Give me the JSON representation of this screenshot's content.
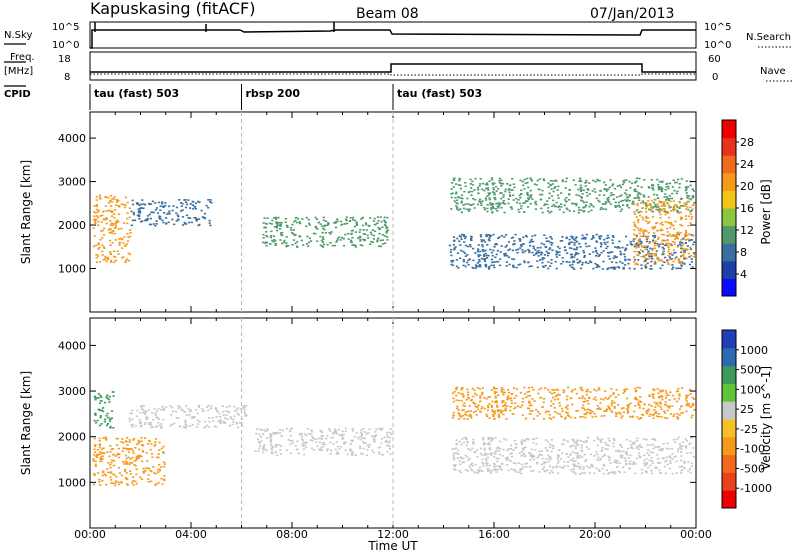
{
  "header": {
    "station": "Kapuskasing (fitACF)",
    "beam": "Beam 08",
    "date": "07/Jan/2013"
  },
  "strip_labels": {
    "nsky": "N.Sky",
    "nsearch": "N.Search",
    "freq": "Freq.",
    "freq_unit": "[MHz]",
    "nave": "Nave",
    "cpid": "CPID"
  },
  "strip_ticks": {
    "nsky_top": "10^5",
    "nsky_bottom": "10^0",
    "nsearch_top": "10^5",
    "nsearch_bottom": "10^0",
    "freq_top": "18",
    "freq_bottom": "8",
    "nave_top": "60",
    "nave_bottom": "0"
  },
  "cpid_segments": [
    {
      "label": "tau (fast) 503",
      "start_hr": 0,
      "end_hr": 6
    },
    {
      "label": "rbsp 200",
      "start_hr": 6,
      "end_hr": 12
    },
    {
      "label": "tau (fast) 503",
      "start_hr": 12,
      "end_hr": 24
    }
  ],
  "power_panel": {
    "ylabel": "Slant Range [km]",
    "cbar_label": "Power [dB]",
    "cbar_ticks": [
      "4",
      "8",
      "12",
      "16",
      "20",
      "24",
      "28"
    ],
    "cbar_colors": [
      "#0a0aff",
      "#1f3fa8",
      "#3b6fa0",
      "#4e9a6a",
      "#8cc63f",
      "#f2c418",
      "#f59a1a",
      "#ef6a1a",
      "#e8321a",
      "#ee0000"
    ]
  },
  "velocity_panel": {
    "ylabel": "Slant Range [km]",
    "cbar_label": "Velocity [m s^-1]",
    "cbar_ticks": [
      "1000",
      "500",
      "100",
      "25",
      "-25",
      "-100",
      "-500",
      "-1000"
    ],
    "cbar_colors": [
      "#1f3fb8",
      "#2f6ab0",
      "#3c9a5a",
      "#5fc63a",
      "#c8c8c8",
      "#f7c02a",
      "#f59a1a",
      "#ef6a1a",
      "#e8421a",
      "#ee0000"
    ]
  },
  "chart_data": [
    {
      "type": "heatmap",
      "title": "Power",
      "xlabel": "Time UT",
      "ylabel": "Slant Range [km]",
      "x_ticks": [
        "00:00",
        "04:00",
        "08:00",
        "12:00",
        "16:00",
        "20:00",
        "00:00"
      ],
      "y_ticks": [
        "1000",
        "2000",
        "3000",
        "4000"
      ],
      "xlim_hours": [
        0,
        24
      ],
      "ylim_km": [
        0,
        4600
      ],
      "colorbar": {
        "label": "Power [dB]",
        "ticks": [
          4,
          8,
          12,
          16,
          20,
          24,
          28
        ]
      },
      "bands": [
        {
          "start_hr": 0.1,
          "end_hr": 1.6,
          "range_km": [
            1150,
            2700
          ],
          "power_db": 20
        },
        {
          "start_hr": 1.6,
          "end_hr": 4.8,
          "range_km": [
            2000,
            2600
          ],
          "power_db": 8
        },
        {
          "start_hr": 6.8,
          "end_hr": 11.8,
          "range_km": [
            1500,
            2200
          ],
          "power_db": 12
        },
        {
          "start_hr": 14.2,
          "end_hr": 23.9,
          "range_km": [
            1000,
            1800
          ],
          "power_db": 8
        },
        {
          "start_hr": 14.2,
          "end_hr": 23.9,
          "range_km": [
            2300,
            3100
          ],
          "power_db": 12
        },
        {
          "start_hr": 21.5,
          "end_hr": 23.9,
          "range_km": [
            1100,
            2600
          ],
          "power_db": 20
        }
      ]
    },
    {
      "type": "heatmap",
      "title": "Velocity",
      "xlabel": "Time UT",
      "ylabel": "Slant Range [km]",
      "x_ticks": [
        "00:00",
        "04:00",
        "08:00",
        "12:00",
        "16:00",
        "20:00",
        "00:00"
      ],
      "y_ticks": [
        "1000",
        "2000",
        "3000",
        "4000"
      ],
      "xlim_hours": [
        0,
        24
      ],
      "ylim_km": [
        0,
        4600
      ],
      "colorbar": {
        "label": "Velocity [m s^-1]",
        "ticks": [
          1000,
          500,
          100,
          25,
          -25,
          -100,
          -500,
          -1000
        ]
      },
      "bands": [
        {
          "start_hr": 0.1,
          "end_hr": 3.0,
          "range_km": [
            950,
            2000
          ],
          "velocity_ms": -300
        },
        {
          "start_hr": 0.1,
          "end_hr": 0.9,
          "range_km": [
            2200,
            3000
          ],
          "velocity_ms": 100
        },
        {
          "start_hr": 1.5,
          "end_hr": 6.2,
          "range_km": [
            2200,
            2700
          ],
          "velocity_ms": 0
        },
        {
          "start_hr": 6.5,
          "end_hr": 11.9,
          "range_km": [
            1600,
            2200
          ],
          "velocity_ms": 0
        },
        {
          "start_hr": 14.3,
          "end_hr": 23.9,
          "range_km": [
            1200,
            2000
          ],
          "velocity_ms": 0
        },
        {
          "start_hr": 14.3,
          "end_hr": 23.9,
          "range_km": [
            2400,
            3100
          ],
          "velocity_ms": -200
        }
      ]
    }
  ]
}
